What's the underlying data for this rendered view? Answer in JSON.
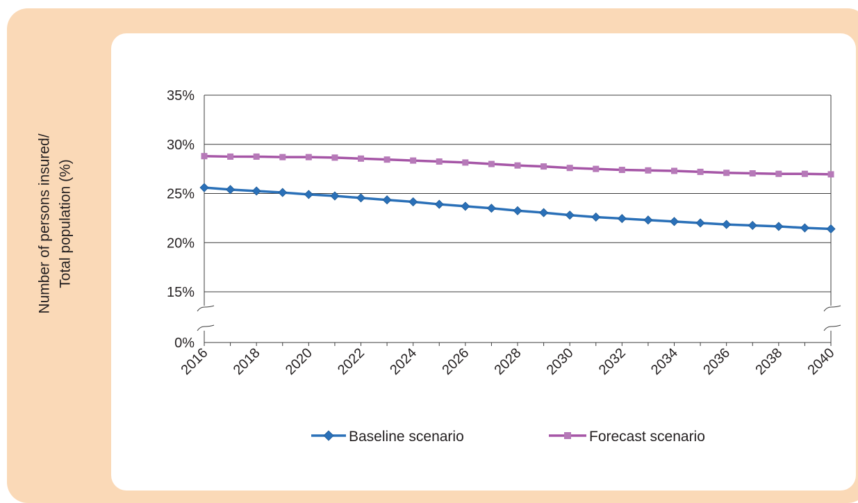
{
  "chart_data": {
    "type": "line",
    "xlabel": "",
    "ylabel_lines": [
      "Number of persons insured/",
      "Total population (%)"
    ],
    "x": [
      2016,
      2017,
      2018,
      2019,
      2020,
      2021,
      2022,
      2023,
      2024,
      2025,
      2026,
      2027,
      2028,
      2029,
      2030,
      2031,
      2032,
      2033,
      2034,
      2035,
      2036,
      2037,
      2038,
      2039,
      2040
    ],
    "x_tick_labels": [
      "2016",
      "2018",
      "2020",
      "2022",
      "2024",
      "2026",
      "2028",
      "2030",
      "2032",
      "2034",
      "2036",
      "2038",
      "2040"
    ],
    "y_tick_labels": [
      "0%",
      "15%",
      "20%",
      "25%",
      "30%",
      "35%"
    ],
    "ylim": [
      15,
      35
    ],
    "y_axis_break": "between 0% and 15%",
    "grid": true,
    "legend_position": "bottom",
    "series": [
      {
        "name": "Baseline scenario",
        "color": "#2a70b8",
        "marker": "diamond",
        "values": [
          25.6,
          25.4,
          25.25,
          25.1,
          24.9,
          24.75,
          24.55,
          24.35,
          24.15,
          23.9,
          23.7,
          23.5,
          23.25,
          23.05,
          22.8,
          22.6,
          22.45,
          22.3,
          22.15,
          22.0,
          21.85,
          21.75,
          21.65,
          21.5,
          21.4
        ]
      },
      {
        "name": "Forecast scenario",
        "color": "#a555a6",
        "marker": "square",
        "values": [
          28.8,
          28.75,
          28.75,
          28.7,
          28.7,
          28.65,
          28.55,
          28.45,
          28.35,
          28.25,
          28.15,
          28.0,
          27.85,
          27.75,
          27.6,
          27.5,
          27.4,
          27.35,
          27.3,
          27.2,
          27.1,
          27.05,
          27.0,
          27.0,
          26.95
        ]
      }
    ]
  }
}
